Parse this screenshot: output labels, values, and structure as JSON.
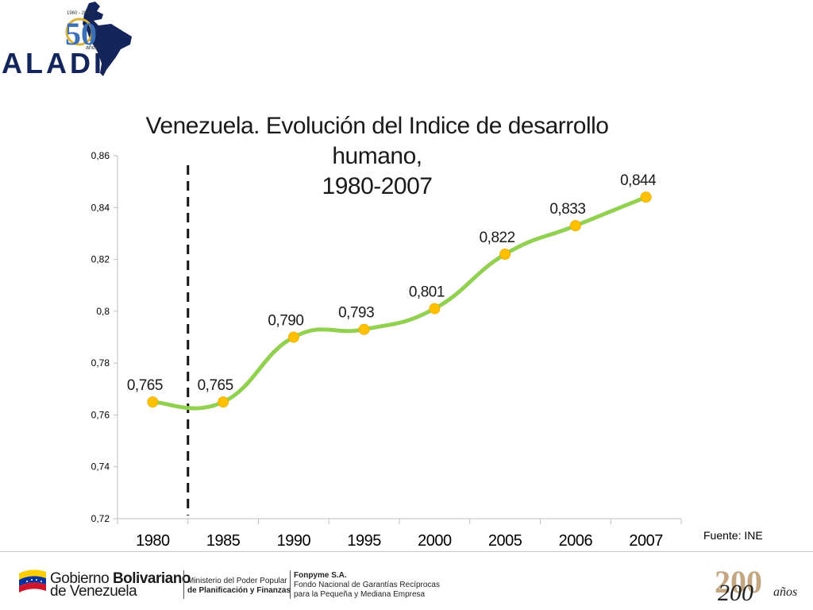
{
  "header": {
    "logo_text": "ALADI",
    "logo_badge": "50",
    "logo_badge_years": "1960 - 2010",
    "logo_badge_word": "años"
  },
  "chart_data": {
    "type": "line",
    "title_lines": [
      "Venezuela. Evolución del Indice de desarrollo",
      "humano,",
      "1980-2007"
    ],
    "categories": [
      "1980",
      "1985",
      "1990",
      "1995",
      "2000",
      "2005",
      "2006",
      "2007"
    ],
    "values": [
      0.765,
      0.765,
      0.79,
      0.793,
      0.801,
      0.822,
      0.833,
      0.844
    ],
    "data_labels": [
      "0,765",
      "0,765",
      "0,790",
      "0,793",
      "0,801",
      "0,822",
      "0,833",
      "0,844"
    ],
    "ylim": [
      0.72,
      0.86
    ],
    "yticks": [
      0.72,
      0.74,
      0.76,
      0.78,
      0.8,
      0.82,
      0.84,
      0.86
    ],
    "ytick_labels": [
      "0,72",
      "0,74",
      "0,76",
      "0,78",
      "0,8",
      "0,82",
      "0,84",
      "0,86"
    ],
    "line_color": "#92d050",
    "marker_color": "#ffc000",
    "divider_after_category": "1980",
    "grid": false,
    "legend": "none"
  },
  "source_note": "Fuente: INE",
  "footer": {
    "gov_line1_a": "Gobierno ",
    "gov_line1_b": "Bolivariano",
    "gov_line2": "de Venezuela",
    "ministry_line1": "Ministerio del Poder Popular",
    "ministry_line2": "de Planificación y Finanzas",
    "fonpyme_line1": "Fonpyme S.A.",
    "fonpyme_line2": "Fondo Nacional de Garantías Recíprocas",
    "fonpyme_line3": "para la Pequeña y Mediana Empresa",
    "bicentennial_number": "200",
    "bicentennial_word": "años"
  }
}
